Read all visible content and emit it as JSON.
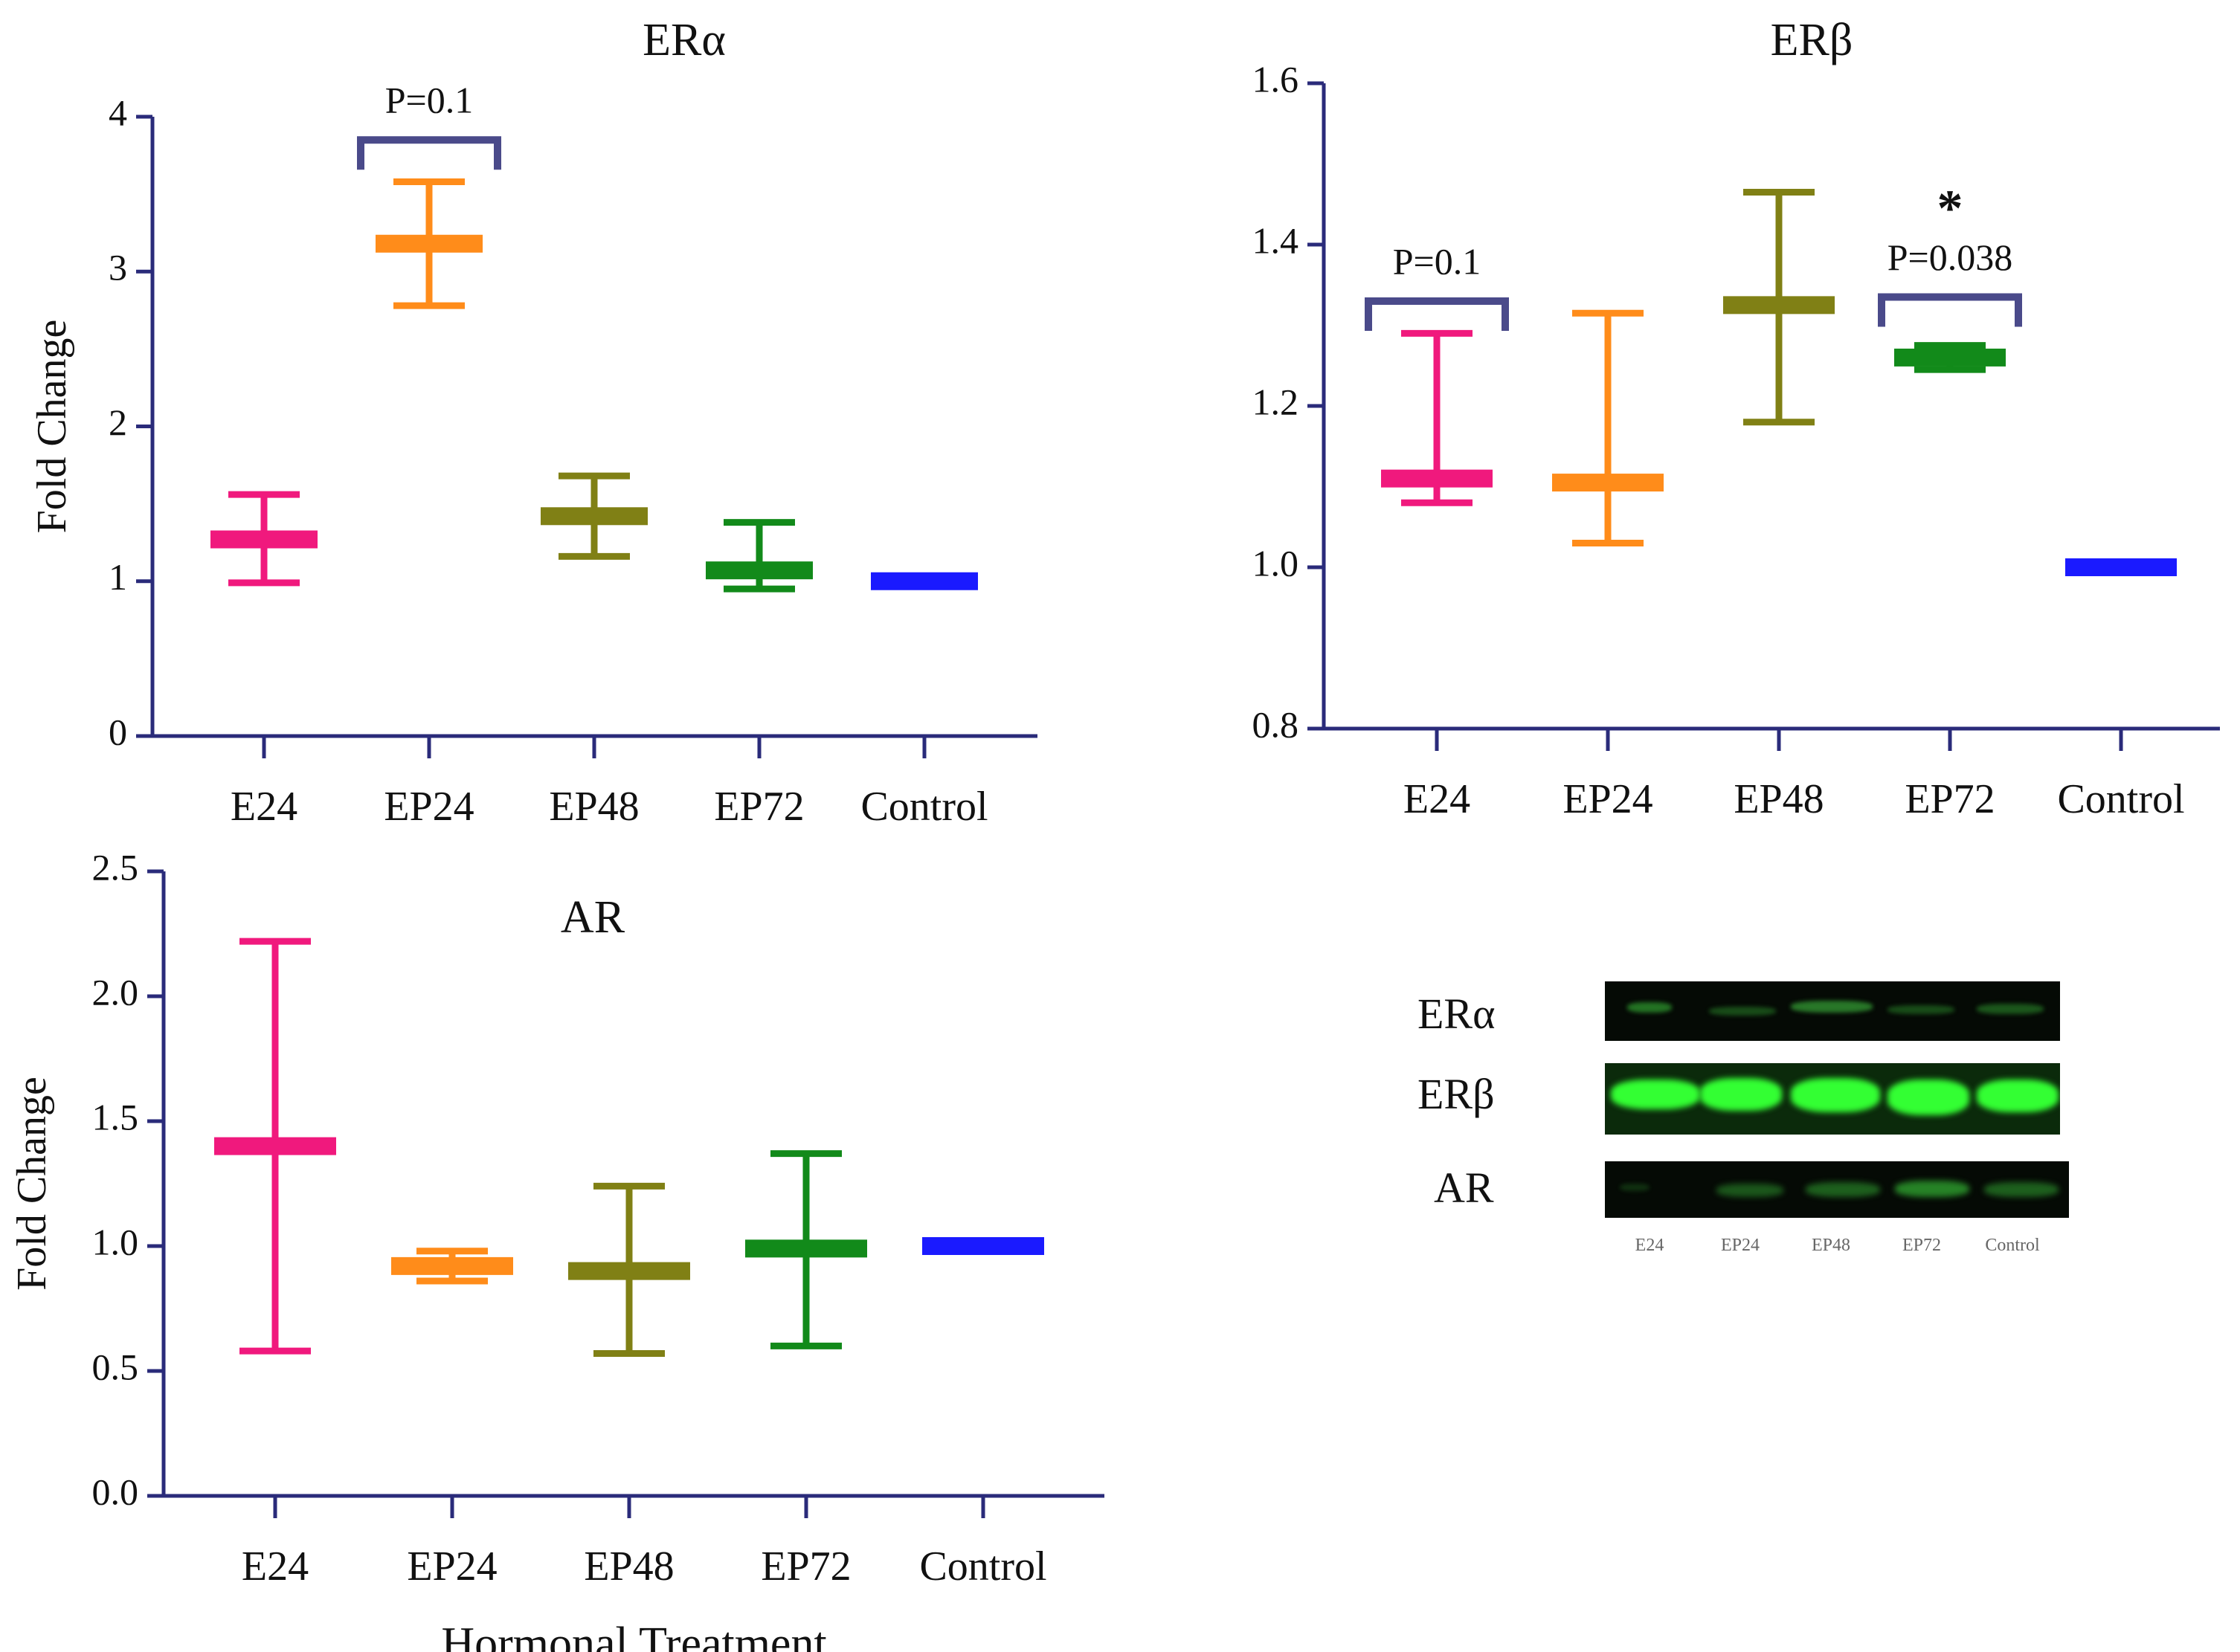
{
  "colors": {
    "axis": "#2a2b7a",
    "bracket": "#4a4a8a",
    "E24": "#f0197d",
    "EP24": "#ff8c1a",
    "EP48": "#808015",
    "EP72": "#128a1a",
    "Control": "#1a1aff"
  },
  "chart_data": [
    {
      "type": "floating-bar",
      "title": "ERα",
      "xlabel": "",
      "ylabel": "Fold Change",
      "categories": [
        "E24",
        "EP24",
        "EP48",
        "EP72",
        "Control"
      ],
      "ylim": [
        0,
        4
      ],
      "yticks": [
        "0",
        "1",
        "2",
        "3",
        "4"
      ],
      "ytick_values": [
        0,
        1,
        2,
        3,
        4
      ],
      "series": [
        {
          "values_min": [
            0.99,
            2.78,
            1.16,
            0.95,
            1.0
          ],
          "values_mean": [
            1.27,
            3.18,
            1.42,
            1.07,
            1.0
          ],
          "values_max": [
            1.56,
            3.58,
            1.68,
            1.38,
            1.0
          ]
        }
      ],
      "annotations": [
        {
          "text": "P=0.1",
          "from": "EP24",
          "to": "EP24",
          "y": 3.85
        }
      ]
    },
    {
      "type": "floating-bar",
      "title": "ERβ",
      "xlabel": "",
      "ylabel": "",
      "categories": [
        "E24",
        "EP24",
        "EP48",
        "EP72",
        "Control"
      ],
      "ylim": [
        0.8,
        1.6
      ],
      "yticks": [
        "0.8",
        "1.0",
        "1.2",
        "1.4",
        "1.6"
      ],
      "ytick_values": [
        0.8,
        1.0,
        1.2,
        1.4,
        1.6
      ],
      "series": [
        {
          "values_min": [
            1.08,
            1.03,
            1.18,
            1.245,
            1.0
          ],
          "values_mean": [
            1.11,
            1.105,
            1.325,
            1.26,
            1.0
          ],
          "values_max": [
            1.29,
            1.315,
            1.465,
            1.275,
            1.0
          ]
        }
      ],
      "annotations": [
        {
          "text": "P=0.1",
          "from": "E24",
          "to": "E24",
          "y": 1.33
        },
        {
          "text": "P=0.038",
          "from": "EP72",
          "to": "EP72",
          "y": 1.335,
          "mark": "*"
        }
      ]
    },
    {
      "type": "floating-bar",
      "title": "AR",
      "xlabel": "Hormonal Treatment",
      "ylabel": "Fold Change",
      "categories": [
        "E24",
        "EP24",
        "EP48",
        "EP72",
        "Control"
      ],
      "ylim": [
        0,
        2.5
      ],
      "yticks": [
        "0.0",
        "0.5",
        "1.0",
        "1.5",
        "2.0",
        "2.5"
      ],
      "ytick_values": [
        0,
        0.5,
        1.0,
        1.5,
        2.0,
        2.5
      ],
      "series": [
        {
          "values_min": [
            0.58,
            0.86,
            0.57,
            0.6,
            1.0
          ],
          "values_mean": [
            1.4,
            0.92,
            0.9,
            0.99,
            1.0
          ],
          "values_max": [
            2.22,
            0.98,
            1.24,
            1.37,
            1.0
          ]
        }
      ],
      "annotations": []
    }
  ],
  "blot": {
    "row_labels": [
      "ERα",
      "ERβ",
      "AR"
    ],
    "lane_labels": [
      "E24",
      "EP24",
      "EP48",
      "EP72",
      "Control"
    ]
  }
}
